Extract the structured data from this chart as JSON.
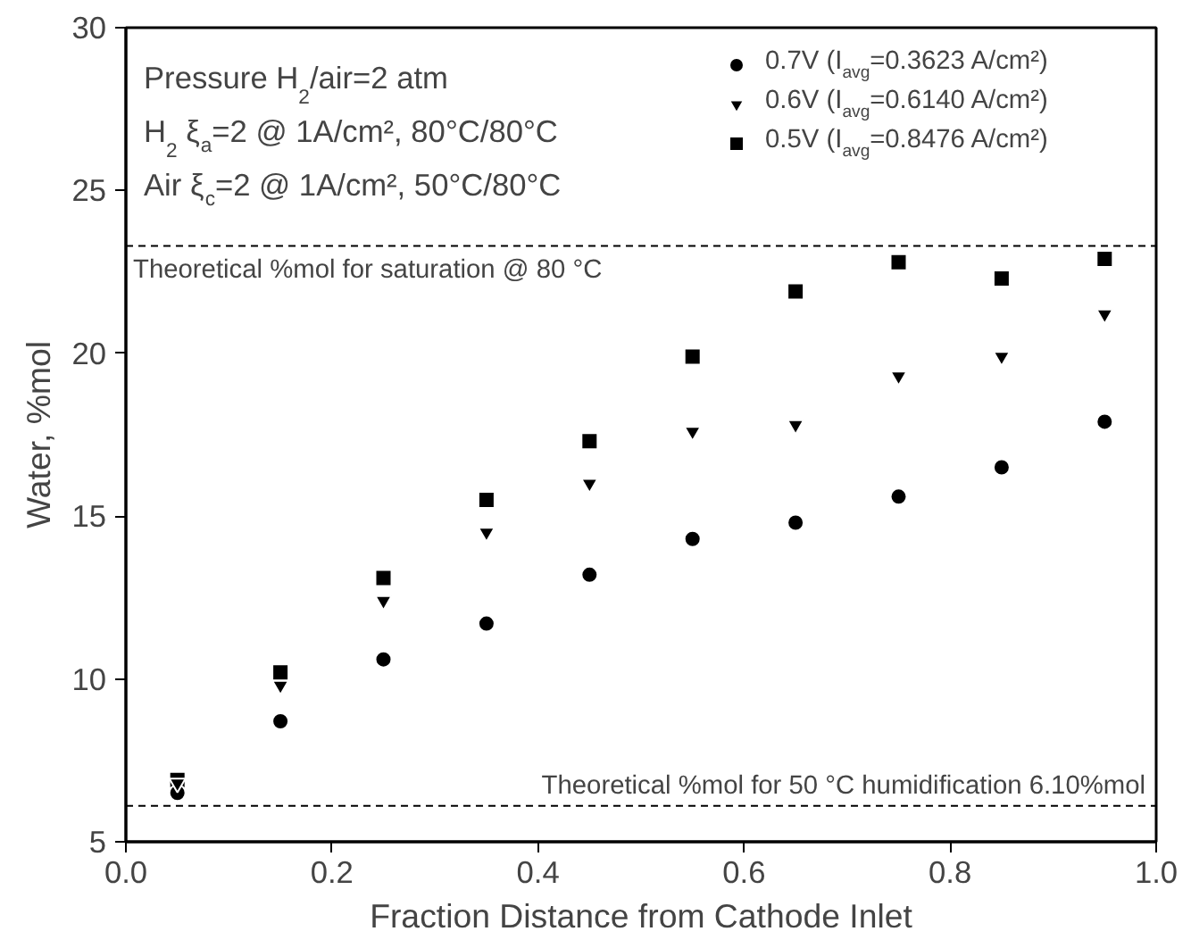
{
  "chart_data": {
    "type": "scatter",
    "xlabel": "Fraction Distance from Cathode Inlet",
    "ylabel": "Water, %mol",
    "x": [
      0.05,
      0.15,
      0.25,
      0.35,
      0.45,
      0.55,
      0.65,
      0.75,
      0.85,
      0.95
    ],
    "series": [
      {
        "name": "0.7V (I$_{avg}$=0.3623 A/cm²)",
        "color": "#000000",
        "marker": "circle",
        "values": [
          6.5,
          8.7,
          10.6,
          11.7,
          13.2,
          14.3,
          14.8,
          15.6,
          16.5,
          17.9
        ]
      },
      {
        "name": "0.6V (I$_{avg}$=0.6140 A/cm²)",
        "color": "#000000",
        "marker": "triangle",
        "values": [
          6.8,
          9.8,
          12.4,
          14.5,
          16.0,
          17.6,
          17.8,
          19.3,
          19.9,
          21.2
        ]
      },
      {
        "name": "0.5V (I$_{avg}$=0.8476 A/cm²)",
        "color": "#000000",
        "marker": "square",
        "values": [
          6.9,
          10.2,
          13.1,
          15.5,
          17.3,
          19.9,
          21.9,
          22.8,
          22.3,
          22.9
        ]
      }
    ],
    "xlim": [
      0,
      1
    ],
    "ylim": [
      5,
      30
    ],
    "xticks": [
      {
        "value": 0,
        "label": "0.0"
      },
      0.2,
      0.4,
      0.6,
      0.8,
      {
        "value": 1,
        "label": "1.0"
      }
    ],
    "yticks": [
      5,
      10,
      15,
      20,
      25,
      30
    ],
    "ref_lines": [
      {
        "axis": "y",
        "value": 23.3,
        "label": "Theoretical %mol for saturation @ 80 °C",
        "line_style": "dashed"
      },
      {
        "axis": "y",
        "value": 6.1,
        "label": "Theoretical %mol for 50 °C humidification 6.10%mol",
        "line_style": "dashed"
      }
    ],
    "annotations": [
      "Pressure H$_{2}$/air=2 atm",
      "H$_{2}$ ξ$_{a}$=2 @ 1A/cm², 80°C/80°C",
      "Air ξ$_{c}$=2 @ 1A/cm², 50°C/80°C"
    ],
    "legend": "top right",
    "grid": false
  }
}
